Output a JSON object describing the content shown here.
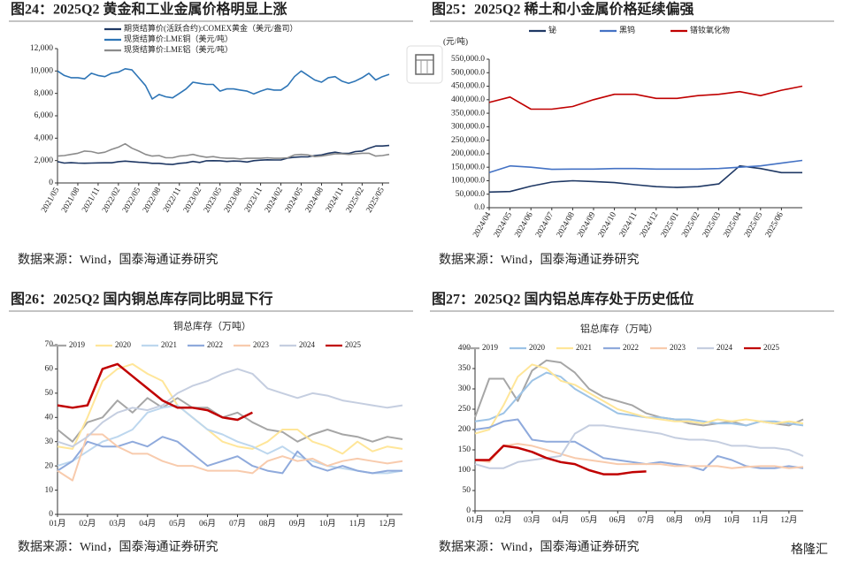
{
  "chart_data": [
    {
      "type": "line",
      "title": "图24：2025Q2 黄金和工业金属价格明显上涨",
      "source": "数据来源：Wind，国泰海通证券研究",
      "legend": "top-left",
      "categories": [
        "2021/05",
        null,
        null,
        "2021/08",
        null,
        null,
        "2021/11",
        null,
        null,
        "2022/02",
        null,
        null,
        "2022/05",
        null,
        null,
        "2022/08",
        null,
        null,
        "2022/11",
        null,
        null,
        "2023/02",
        null,
        null,
        "2023/05",
        null,
        null,
        "2023/08",
        null,
        null,
        "2023/11",
        null,
        null,
        "2024/02",
        null,
        null,
        "2024/05",
        null,
        null,
        "2024/08",
        null,
        null,
        "2024/11",
        null,
        null,
        "2025/02",
        null,
        null,
        "2025/05",
        null
      ],
      "ylim": [
        0,
        12000
      ],
      "yticks": [
        0,
        {
          "value": 2000,
          "label": "2,000"
        },
        {
          "value": 4000,
          "label": "4,000"
        },
        {
          "value": 6000,
          "label": "6,000"
        },
        {
          "value": 8000,
          "label": "8,000"
        },
        {
          "value": 10000,
          "label": "10,000"
        },
        {
          "value": 12000,
          "label": "12,000"
        }
      ],
      "series": [
        {
          "name": "期货结算价(活跃合约):COMEX黄金（美元/盎司）",
          "color": "#1f3864",
          "values": [
            1900,
            1780,
            1810,
            1780,
            1760,
            1780,
            1790,
            1800,
            1800,
            1900,
            1950,
            1900,
            1850,
            1820,
            1750,
            1750,
            1680,
            1650,
            1750,
            1800,
            1920,
            1830,
            1980,
            1990,
            1980,
            1920,
            1960,
            1940,
            1870,
            1990,
            2040,
            2070,
            2050,
            2050,
            2230,
            2300,
            2340,
            2330,
            2450,
            2500,
            2650,
            2750,
            2650,
            2640,
            2800,
            2850,
            3100,
            3300,
            3300,
            3350
          ]
        },
        {
          "name": "现货结算价:LME铜（美元/吨）",
          "color": "#2e75b6",
          "values": [
            10000,
            9600,
            9400,
            9400,
            9300,
            9800,
            9600,
            9500,
            9800,
            9900,
            10200,
            10100,
            9400,
            8700,
            7500,
            7900,
            7700,
            7600,
            8000,
            8400,
            9000,
            8900,
            8800,
            8800,
            8200,
            8400,
            8400,
            8300,
            8200,
            7950,
            8200,
            8400,
            8300,
            8300,
            8700,
            9500,
            10000,
            9600,
            9200,
            9000,
            9400,
            9500,
            9100,
            8900,
            9100,
            9400,
            9800,
            9200,
            9500,
            9700
          ]
        },
        {
          "name": "现货结算价:LME铝（美元/吨）",
          "color": "#8c8c8c",
          "values": [
            2400,
            2450,
            2550,
            2650,
            2850,
            2800,
            2650,
            2750,
            3000,
            3200,
            3500,
            3100,
            2850,
            2550,
            2400,
            2450,
            2250,
            2250,
            2400,
            2450,
            2550,
            2400,
            2300,
            2350,
            2250,
            2200,
            2200,
            2150,
            2200,
            2200,
            2200,
            2250,
            2200,
            2200,
            2250,
            2500,
            2550,
            2500,
            2350,
            2400,
            2500,
            2600,
            2600,
            2550,
            2600,
            2650,
            2650,
            2400,
            2450,
            2550
          ]
        }
      ]
    },
    {
      "type": "line",
      "title": "图25：2025Q2 稀土和小金属价格延续偏强",
      "source": "数据来源：Wind，国泰海通证券研究",
      "unit": "(元/吨)",
      "legend": "top",
      "categories": [
        "2024/04",
        "2024/05",
        "2024/06",
        "2024/07",
        "2024/08",
        "2024/09",
        "2024/10",
        "2024/11",
        "2024/12",
        "2025/01",
        "2025/02",
        "2025/03",
        "2025/04",
        "2025/05",
        "2025/06",
        null
      ],
      "ylim": [
        0,
        550000
      ],
      "yticks": [
        {
          "value": 0,
          "label": "0.0"
        },
        {
          "value": 50000,
          "label": "50,000.0"
        },
        {
          "value": 100000,
          "label": "100,000.0"
        },
        {
          "value": 150000,
          "label": "150,000.0"
        },
        {
          "value": 200000,
          "label": "200,000.0"
        },
        {
          "value": 250000,
          "label": "250,000.0"
        },
        {
          "value": 300000,
          "label": "300,000.0"
        },
        {
          "value": 350000,
          "label": "350,000.0"
        },
        {
          "value": 400000,
          "label": "400,000.0"
        },
        {
          "value": 450000,
          "label": "450,000.0"
        },
        {
          "value": 500000,
          "label": "500,000.0"
        },
        {
          "value": 550000,
          "label": "550,000.0"
        }
      ],
      "series": [
        {
          "name": "铋",
          "color": "#1f3864",
          "values": [
            58000,
            60000,
            80000,
            95000,
            100000,
            97000,
            93000,
            85000,
            78000,
            75000,
            78000,
            88000,
            155000,
            145000,
            130000,
            130000
          ]
        },
        {
          "name": "黑钨",
          "color": "#4472c4",
          "values": [
            130000,
            155000,
            150000,
            142000,
            143000,
            143000,
            145000,
            145000,
            143000,
            143000,
            143000,
            145000,
            150000,
            155000,
            165000,
            175000
          ]
        },
        {
          "name": "镨钕氧化物",
          "color": "#c00000",
          "values": [
            390000,
            410000,
            365000,
            365000,
            375000,
            400000,
            420000,
            420000,
            405000,
            405000,
            415000,
            420000,
            430000,
            415000,
            435000,
            450000
          ]
        }
      ]
    },
    {
      "type": "line",
      "title": "图26：2025Q2 国内铜总库存同比明显下行",
      "source": "数据来源：Wind，国泰海通证券研究",
      "subtitle": "铜总库存（万吨）",
      "legend": "top",
      "categories": [
        "01月",
        null,
        "02月",
        null,
        "03月",
        null,
        "04月",
        null,
        "05月",
        null,
        "06月",
        null,
        "07月",
        null,
        "08月",
        null,
        "09月",
        null,
        "10月",
        null,
        "11月",
        null,
        "12月",
        null
      ],
      "ylim": [
        0,
        70
      ],
      "yticks": [
        0,
        10,
        20,
        30,
        40,
        50,
        60,
        70
      ],
      "series": [
        {
          "name": "2019",
          "color": "#a6a6a6",
          "values": [
            35,
            30,
            38,
            40,
            47,
            42,
            48,
            44,
            48,
            44,
            44,
            40,
            42,
            38,
            35,
            34,
            30,
            33,
            35,
            33,
            32,
            30,
            32,
            31
          ]
        },
        {
          "name": "2020",
          "color": "#ffe699",
          "values": [
            28,
            27,
            40,
            55,
            60,
            62,
            58,
            55,
            45,
            40,
            35,
            30,
            28,
            27,
            30,
            35,
            35,
            30,
            28,
            25,
            30,
            26,
            28,
            27
          ]
        },
        {
          "name": "2021",
          "color": "#bdd7ee",
          "values": [
            20,
            22,
            26,
            30,
            32,
            35,
            42,
            44,
            45,
            40,
            35,
            33,
            30,
            28,
            25,
            28,
            24,
            22,
            20,
            19,
            18,
            17,
            17,
            18
          ]
        },
        {
          "name": "2022",
          "color": "#8faadc",
          "values": [
            18,
            22,
            30,
            28,
            28,
            30,
            28,
            32,
            30,
            25,
            20,
            22,
            24,
            20,
            18,
            17,
            26,
            20,
            18,
            20,
            18,
            17,
            18,
            18
          ]
        },
        {
          "name": "2023",
          "color": "#f8cbad",
          "values": [
            18,
            14,
            33,
            33,
            28,
            25,
            25,
            22,
            20,
            20,
            18,
            18,
            18,
            17,
            22,
            24,
            22,
            23,
            20,
            22,
            23,
            22,
            21,
            22
          ]
        },
        {
          "name": "2024",
          "color": "#c5cee0",
          "values": [
            30,
            28,
            32,
            38,
            42,
            44,
            43,
            45,
            50,
            53,
            55,
            58,
            60,
            58,
            52,
            50,
            48,
            50,
            49,
            47,
            46,
            45,
            44,
            45
          ]
        },
        {
          "name": "2025",
          "color": "#c00000",
          "values": [
            45,
            44,
            45,
            60,
            62,
            57,
            52,
            47,
            44,
            44,
            43,
            40,
            39,
            42,
            null,
            null,
            null,
            null,
            null,
            null,
            null,
            null,
            null,
            null
          ]
        }
      ]
    },
    {
      "type": "line",
      "title": "图27：2025Q2 国内铝总库存处于历史低位",
      "source": "数据来源：Wind，国泰海通证券研究",
      "subtitle": "铝总库存（万吨）",
      "legend": "top",
      "categories": [
        "01月",
        null,
        "02月",
        null,
        "03月",
        null,
        "04月",
        null,
        "05月",
        null,
        "06月",
        null,
        "07月",
        null,
        "08月",
        null,
        "09月",
        null,
        "10月",
        null,
        "11月",
        null,
        "12月",
        null
      ],
      "ylim": [
        0,
        400
      ],
      "yticks": [
        0,
        50,
        100,
        150,
        200,
        250,
        300,
        350,
        400
      ],
      "series": [
        {
          "name": "2019",
          "color": "#a6a6a6",
          "values": [
            230,
            325,
            325,
            270,
            345,
            370,
            365,
            340,
            300,
            280,
            270,
            260,
            240,
            230,
            225,
            215,
            210,
            215,
            220,
            210,
            220,
            215,
            210,
            225
          ]
        },
        {
          "name": "2020",
          "color": "#9dc3e6",
          "values": [
            220,
            225,
            240,
            280,
            320,
            340,
            330,
            300,
            280,
            260,
            240,
            235,
            230,
            230,
            225,
            225,
            220,
            215,
            215,
            210,
            220,
            220,
            215,
            210
          ]
        },
        {
          "name": "2021",
          "color": "#ffe699",
          "values": [
            190,
            200,
            260,
            330,
            360,
            350,
            320,
            310,
            290,
            270,
            250,
            240,
            230,
            225,
            220,
            220,
            215,
            225,
            220,
            225,
            220,
            215,
            220,
            215
          ]
        },
        {
          "name": "2022",
          "color": "#8faadc",
          "values": [
            200,
            205,
            220,
            225,
            175,
            170,
            170,
            170,
            150,
            130,
            125,
            120,
            115,
            120,
            115,
            110,
            100,
            135,
            125,
            110,
            105,
            105,
            110,
            105
          ]
        },
        {
          "name": "2023",
          "color": "#f8cbad",
          "values": [
            125,
            120,
            160,
            165,
            160,
            150,
            140,
            130,
            125,
            120,
            115,
            115,
            115,
            115,
            110,
            110,
            110,
            110,
            105,
            108,
            110,
            110,
            105,
            108
          ]
        },
        {
          "name": "2024",
          "color": "#c5cee0",
          "values": [
            115,
            105,
            105,
            120,
            125,
            130,
            135,
            190,
            210,
            210,
            205,
            200,
            195,
            190,
            180,
            175,
            175,
            170,
            160,
            160,
            155,
            155,
            150,
            135
          ]
        },
        {
          "name": "2025",
          "color": "#c00000",
          "values": [
            125,
            125,
            160,
            155,
            145,
            130,
            120,
            115,
            100,
            90,
            90,
            95,
            97,
            null,
            null,
            null,
            null,
            null,
            null,
            null,
            null,
            null,
            null,
            null
          ]
        }
      ]
    }
  ],
  "watermark": "格隆汇"
}
